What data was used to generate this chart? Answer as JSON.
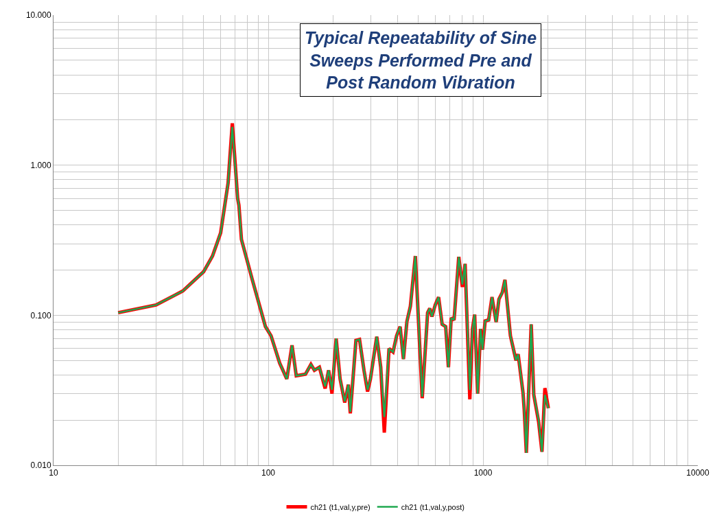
{
  "chart_data": {
    "type": "line",
    "title": "Typical Repeatability of Sine\nSweeps Performed Pre and\nPost Random Vibration",
    "log": "xy",
    "grid": true,
    "legend": "bottom",
    "marker": "none",
    "line_style": "solid",
    "xlim": [
      10,
      10000
    ],
    "ylim": [
      0.01,
      10
    ],
    "xticks": [
      10,
      {
        "value": 20,
        "label": null
      },
      {
        "value": 30,
        "label": null
      },
      {
        "value": 40,
        "label": null
      },
      {
        "value": 50,
        "label": null
      },
      {
        "value": 60,
        "label": null
      },
      {
        "value": 70,
        "label": null
      },
      {
        "value": 80,
        "label": null
      },
      {
        "value": 90,
        "label": null
      },
      100,
      {
        "value": 200,
        "label": null
      },
      {
        "value": 300,
        "label": null
      },
      {
        "value": 400,
        "label": null
      },
      {
        "value": 500,
        "label": null
      },
      {
        "value": 600,
        "label": null
      },
      {
        "value": 700,
        "label": null
      },
      {
        "value": 800,
        "label": null
      },
      {
        "value": 900,
        "label": null
      },
      1000,
      {
        "value": 2000,
        "label": null
      },
      {
        "value": 3000,
        "label": null
      },
      {
        "value": 4000,
        "label": null
      },
      {
        "value": 5000,
        "label": null
      },
      {
        "value": 6000,
        "label": null
      },
      {
        "value": 7000,
        "label": null
      },
      {
        "value": 8000,
        "label": null
      },
      {
        "value": 9000,
        "label": null
      },
      10000
    ],
    "yticks": [
      {
        "value": 0.01,
        "label": "0.010"
      },
      {
        "value": 0.02,
        "label": null
      },
      {
        "value": 0.03,
        "label": null
      },
      {
        "value": 0.04,
        "label": null
      },
      {
        "value": 0.05,
        "label": null
      },
      {
        "value": 0.06,
        "label": null
      },
      {
        "value": 0.07,
        "label": null
      },
      {
        "value": 0.08,
        "label": null
      },
      {
        "value": 0.09,
        "label": null
      },
      {
        "value": 0.1,
        "label": "0.100"
      },
      {
        "value": 0.2,
        "label": null
      },
      {
        "value": 0.3,
        "label": null
      },
      {
        "value": 0.4,
        "label": null
      },
      {
        "value": 0.5,
        "label": null
      },
      {
        "value": 0.6,
        "label": null
      },
      {
        "value": 0.7,
        "label": null
      },
      {
        "value": 0.8,
        "label": null
      },
      {
        "value": 0.9,
        "label": null
      },
      {
        "value": 1,
        "label": "1.000"
      },
      {
        "value": 2,
        "label": null
      },
      {
        "value": 3,
        "label": null
      },
      {
        "value": 4,
        "label": null
      },
      {
        "value": 5,
        "label": null
      },
      {
        "value": 6,
        "label": null
      },
      {
        "value": 7,
        "label": null
      },
      {
        "value": 8,
        "label": null
      },
      {
        "value": 9,
        "label": null
      },
      {
        "value": 10,
        "label": "10.000"
      }
    ],
    "x": [
      20,
      30,
      40,
      50,
      55,
      60,
      65,
      68,
      72,
      73,
      75,
      84,
      97,
      103,
      113,
      122,
      129,
      135,
      149,
      158,
      164,
      173,
      184,
      191,
      198,
      207,
      216,
      227,
      236,
      241,
      256,
      266,
      279,
      290,
      299,
      320,
      334,
      347,
      365,
      381,
      396,
      411,
      426,
      442,
      459,
      484,
      521,
      552,
      565,
      578,
      599,
      621,
      645,
      670,
      690,
      711,
      733,
      771,
      801,
      825,
      868,
      893,
      914,
      944,
      974,
      994,
      1023,
      1062,
      1101,
      1151,
      1186,
      1230,
      1265,
      1341,
      1424,
      1457,
      1535,
      1557,
      1591,
      1676,
      1723,
      1815,
      1881,
      1941,
      2015
    ],
    "series": [
      {
        "name": "ch21 (t1,val,y,pre)",
        "color": "#ff0000",
        "values": [
          0.104,
          0.117,
          0.145,
          0.195,
          0.248,
          0.354,
          0.76,
          1.9,
          0.6,
          0.54,
          0.32,
          0.175,
          0.084,
          0.073,
          0.048,
          0.0376,
          0.063,
          0.0395,
          0.0405,
          0.047,
          0.043,
          0.045,
          0.0325,
          0.043,
          0.03,
          0.07,
          0.0376,
          0.0262,
          0.0345,
          0.0222,
          0.068,
          0.069,
          0.043,
          0.031,
          0.0376,
          0.072,
          0.045,
          0.0165,
          0.06,
          0.0569,
          0.073,
          0.084,
          0.051,
          0.0906,
          0.115,
          0.248,
          0.028,
          0.104,
          0.111,
          0.098,
          0.117,
          0.132,
          0.087,
          0.084,
          0.045,
          0.096,
          0.093,
          0.245,
          0.154,
          0.22,
          0.0275,
          0.081,
          0.101,
          0.03,
          0.081,
          0.059,
          0.0915,
          0.093,
          0.132,
          0.09,
          0.128,
          0.142,
          0.172,
          0.073,
          0.05,
          0.055,
          0.0305,
          0.023,
          0.0121,
          0.087,
          0.0295,
          0.0195,
          0.0123,
          0.0327,
          0.024
        ]
      },
      {
        "name": "ch21 (t1,val,y,post)",
        "color": "#1fa84f",
        "values": [
          0.104,
          0.117,
          0.145,
          0.195,
          0.248,
          0.354,
          0.76,
          1.8,
          0.6,
          0.54,
          0.32,
          0.175,
          0.084,
          0.073,
          0.048,
          0.0376,
          0.063,
          0.0395,
          0.0405,
          0.047,
          0.043,
          0.045,
          0.0335,
          0.043,
          0.0318,
          0.07,
          0.0376,
          0.0266,
          0.0345,
          0.0227,
          0.068,
          0.069,
          0.043,
          0.0318,
          0.0376,
          0.072,
          0.045,
          0.021,
          0.06,
          0.0569,
          0.073,
          0.084,
          0.051,
          0.0906,
          0.115,
          0.248,
          0.0286,
          0.104,
          0.111,
          0.098,
          0.117,
          0.132,
          0.087,
          0.084,
          0.045,
          0.096,
          0.093,
          0.245,
          0.16,
          0.22,
          0.0318,
          0.081,
          0.101,
          0.03,
          0.081,
          0.059,
          0.0915,
          0.093,
          0.132,
          0.09,
          0.128,
          0.142,
          0.172,
          0.073,
          0.05,
          0.055,
          0.0305,
          0.023,
          0.0121,
          0.087,
          0.0295,
          0.02,
          0.0123,
          0.0295,
          0.024
        ]
      }
    ]
  }
}
